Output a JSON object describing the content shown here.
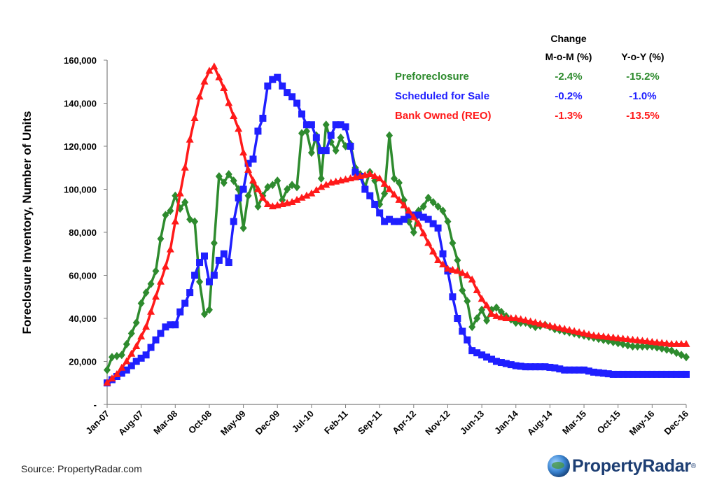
{
  "source": "Source: PropertyRadar.com",
  "brand": {
    "name": "PropertyRadar",
    "tm": "®"
  },
  "legend": {
    "header_change": "Change",
    "header_mom": "M-o-M (%)",
    "header_yoy": "Y-o-Y (%)",
    "rows": [
      {
        "label": "Preforeclosure",
        "mom": "-2.4%",
        "yoy": "-15.2%",
        "color": "#2e8b2e"
      },
      {
        "label": "Scheduled for Sale",
        "mom": "-0.2%",
        "yoy": "-1.0%",
        "color": "#1f1fff"
      },
      {
        "label": "Bank Owned (REO)",
        "mom": "-1.3%",
        "yoy": "-13.5%",
        "color": "#ff1a1a"
      }
    ]
  },
  "chart_data": {
    "type": "line",
    "ylabel": "Foreclosure Inventory, Number of Units",
    "xlabel": "",
    "ylim": [
      0,
      160000
    ],
    "y_ticks": [
      "-",
      "20,000",
      "40,000",
      "60,000",
      "80,000",
      "100,000",
      "120,000",
      "140,000",
      "160,000"
    ],
    "x_tick_labels": [
      "Jan-07",
      "Aug-07",
      "Mar-08",
      "Oct-08",
      "May-09",
      "Dec-09",
      "Jul-10",
      "Feb-11",
      "Sep-11",
      "Apr-12",
      "Nov-12",
      "Jun-13",
      "Jan-14",
      "Aug-14",
      "Mar-15",
      "Oct-15",
      "May-16",
      "Dec-16"
    ],
    "x_start": "Jan-07",
    "x_end": "Dec-16",
    "period": "monthly",
    "grid": false,
    "legend_position": "top-right",
    "series": [
      {
        "name": "Preforeclosure",
        "color": "#2e8b2e",
        "marker": "diamond",
        "anchors": [
          [
            0,
            16000
          ],
          [
            1,
            22000
          ],
          [
            3,
            23000
          ],
          [
            4,
            28000
          ],
          [
            6,
            38000
          ],
          [
            7,
            47000
          ],
          [
            8,
            52000
          ],
          [
            9,
            56000
          ],
          [
            10,
            62000
          ],
          [
            11,
            77000
          ],
          [
            12,
            88000
          ],
          [
            13,
            90000
          ],
          [
            14,
            97000
          ],
          [
            15,
            91000
          ],
          [
            16,
            94000
          ],
          [
            17,
            86000
          ],
          [
            18,
            85000
          ],
          [
            19,
            57000
          ],
          [
            20,
            42000
          ],
          [
            21,
            44000
          ],
          [
            22,
            75000
          ],
          [
            23,
            106000
          ],
          [
            24,
            103000
          ],
          [
            25,
            107000
          ],
          [
            26,
            104000
          ],
          [
            27,
            100000
          ],
          [
            28,
            82000
          ],
          [
            29,
            97000
          ],
          [
            30,
            103000
          ],
          [
            31,
            92000
          ],
          [
            32,
            97000
          ],
          [
            33,
            101000
          ],
          [
            34,
            102000
          ],
          [
            35,
            104000
          ],
          [
            36,
            95000
          ],
          [
            37,
            100000
          ],
          [
            38,
            102000
          ],
          [
            39,
            101000
          ],
          [
            40,
            126000
          ],
          [
            41,
            127000
          ],
          [
            42,
            117000
          ],
          [
            43,
            125000
          ],
          [
            44,
            105000
          ],
          [
            45,
            130000
          ],
          [
            46,
            122000
          ],
          [
            47,
            118000
          ],
          [
            48,
            124000
          ],
          [
            49,
            120000
          ],
          [
            50,
            121000
          ],
          [
            51,
            110000
          ],
          [
            52,
            107000
          ],
          [
            53,
            101000
          ],
          [
            54,
            108000
          ],
          [
            55,
            104000
          ],
          [
            56,
            93000
          ],
          [
            57,
            98000
          ],
          [
            58,
            125000
          ],
          [
            59,
            105000
          ],
          [
            60,
            103000
          ],
          [
            61,
            95000
          ],
          [
            62,
            85000
          ],
          [
            63,
            80000
          ],
          [
            64,
            90000
          ],
          [
            65,
            92000
          ],
          [
            66,
            96000
          ],
          [
            67,
            94000
          ],
          [
            68,
            92000
          ],
          [
            69,
            90000
          ],
          [
            70,
            85000
          ],
          [
            71,
            75000
          ],
          [
            72,
            67000
          ],
          [
            73,
            53000
          ],
          [
            74,
            48000
          ],
          [
            75,
            36000
          ],
          [
            76,
            40000
          ],
          [
            77,
            44000
          ],
          [
            78,
            39000
          ],
          [
            79,
            44000
          ],
          [
            80,
            45000
          ],
          [
            81,
            43000
          ],
          [
            82,
            41000
          ],
          [
            84,
            38000
          ],
          [
            86,
            38000
          ],
          [
            88,
            36000
          ],
          [
            90,
            37000
          ],
          [
            92,
            35000
          ],
          [
            94,
            34000
          ],
          [
            96,
            33000
          ],
          [
            98,
            32000
          ],
          [
            100,
            31000
          ],
          [
            102,
            30000
          ],
          [
            104,
            29000
          ],
          [
            106,
            28000
          ],
          [
            108,
            27000
          ],
          [
            110,
            27000
          ],
          [
            112,
            27000
          ],
          [
            114,
            26000
          ],
          [
            116,
            25000
          ],
          [
            117,
            24000
          ],
          [
            118,
            23000
          ],
          [
            119,
            22000
          ]
        ]
      },
      {
        "name": "Scheduled for Sale",
        "color": "#1f1fff",
        "marker": "square",
        "anchors": [
          [
            0,
            10000
          ],
          [
            2,
            13000
          ],
          [
            4,
            16000
          ],
          [
            6,
            20000
          ],
          [
            8,
            23000
          ],
          [
            10,
            30000
          ],
          [
            12,
            36000
          ],
          [
            13,
            37000
          ],
          [
            14,
            37000
          ],
          [
            15,
            43000
          ],
          [
            16,
            47000
          ],
          [
            17,
            52000
          ],
          [
            18,
            60000
          ],
          [
            19,
            66000
          ],
          [
            20,
            69000
          ],
          [
            21,
            57000
          ],
          [
            22,
            60000
          ],
          [
            23,
            67000
          ],
          [
            24,
            70000
          ],
          [
            25,
            66000
          ],
          [
            26,
            85000
          ],
          [
            27,
            96000
          ],
          [
            28,
            100000
          ],
          [
            29,
            112000
          ],
          [
            30,
            114000
          ],
          [
            31,
            127000
          ],
          [
            32,
            133000
          ],
          [
            33,
            148000
          ],
          [
            34,
            151000
          ],
          [
            35,
            152000
          ],
          [
            36,
            148000
          ],
          [
            37,
            145000
          ],
          [
            38,
            143000
          ],
          [
            39,
            140000
          ],
          [
            40,
            135000
          ],
          [
            41,
            130000
          ],
          [
            42,
            130000
          ],
          [
            43,
            124000
          ],
          [
            44,
            118000
          ],
          [
            45,
            118000
          ],
          [
            46,
            125000
          ],
          [
            47,
            130000
          ],
          [
            48,
            130000
          ],
          [
            49,
            129000
          ],
          [
            50,
            120000
          ],
          [
            51,
            108000
          ],
          [
            52,
            106000
          ],
          [
            53,
            100000
          ],
          [
            54,
            97000
          ],
          [
            55,
            93000
          ],
          [
            56,
            89000
          ],
          [
            57,
            85000
          ],
          [
            58,
            86000
          ],
          [
            59,
            85000
          ],
          [
            60,
            85000
          ],
          [
            61,
            86000
          ],
          [
            62,
            88000
          ],
          [
            63,
            88000
          ],
          [
            64,
            88000
          ],
          [
            65,
            87000
          ],
          [
            66,
            86000
          ],
          [
            67,
            84000
          ],
          [
            68,
            82000
          ],
          [
            69,
            70000
          ],
          [
            70,
            62000
          ],
          [
            71,
            50000
          ],
          [
            72,
            40000
          ],
          [
            73,
            34000
          ],
          [
            74,
            30000
          ],
          [
            75,
            25000
          ],
          [
            76,
            24000
          ],
          [
            77,
            23000
          ],
          [
            78,
            22000
          ],
          [
            80,
            20000
          ],
          [
            82,
            19000
          ],
          [
            84,
            18000
          ],
          [
            86,
            17500
          ],
          [
            88,
            17500
          ],
          [
            90,
            17500
          ],
          [
            92,
            17000
          ],
          [
            94,
            16000
          ],
          [
            96,
            16000
          ],
          [
            98,
            16000
          ],
          [
            100,
            15000
          ],
          [
            104,
            14000
          ],
          [
            108,
            14000
          ],
          [
            112,
            14000
          ],
          [
            116,
            14000
          ],
          [
            119,
            14000
          ]
        ]
      },
      {
        "name": "Bank Owned (REO)",
        "color": "#ff1a1a",
        "marker": "triangle",
        "anchors": [
          [
            0,
            10000
          ],
          [
            2,
            14000
          ],
          [
            4,
            20000
          ],
          [
            6,
            27000
          ],
          [
            8,
            36000
          ],
          [
            10,
            50000
          ],
          [
            12,
            64000
          ],
          [
            13,
            72000
          ],
          [
            14,
            85000
          ],
          [
            15,
            98000
          ],
          [
            16,
            110000
          ],
          [
            17,
            123000
          ],
          [
            18,
            133000
          ],
          [
            19,
            143000
          ],
          [
            20,
            150000
          ],
          [
            21,
            155000
          ],
          [
            22,
            157000
          ],
          [
            23,
            152000
          ],
          [
            24,
            147000
          ],
          [
            25,
            140000
          ],
          [
            26,
            134000
          ],
          [
            27,
            128000
          ],
          [
            28,
            117000
          ],
          [
            29,
            109000
          ],
          [
            30,
            104000
          ],
          [
            31,
            100000
          ],
          [
            32,
            96000
          ],
          [
            33,
            93000
          ],
          [
            34,
            92000
          ],
          [
            36,
            93000
          ],
          [
            38,
            94000
          ],
          [
            40,
            96000
          ],
          [
            42,
            98000
          ],
          [
            44,
            101000
          ],
          [
            46,
            103000
          ],
          [
            48,
            104000
          ],
          [
            50,
            105000
          ],
          [
            52,
            106000
          ],
          [
            54,
            107000
          ],
          [
            56,
            105000
          ],
          [
            58,
            100000
          ],
          [
            60,
            95000
          ],
          [
            62,
            90000
          ],
          [
            64,
            84000
          ],
          [
            66,
            75000
          ],
          [
            68,
            67000
          ],
          [
            70,
            63000
          ],
          [
            72,
            62000
          ],
          [
            74,
            60000
          ],
          [
            75,
            58000
          ],
          [
            76,
            53000
          ],
          [
            77,
            49000
          ],
          [
            78,
            46000
          ],
          [
            79,
            42000
          ],
          [
            80,
            41000
          ],
          [
            82,
            40000
          ],
          [
            84,
            40000
          ],
          [
            86,
            39000
          ],
          [
            88,
            38000
          ],
          [
            90,
            37000
          ],
          [
            92,
            36000
          ],
          [
            94,
            35000
          ],
          [
            96,
            34000
          ],
          [
            98,
            33000
          ],
          [
            100,
            32000
          ],
          [
            102,
            31500
          ],
          [
            104,
            31000
          ],
          [
            106,
            30500
          ],
          [
            108,
            30000
          ],
          [
            110,
            29500
          ],
          [
            112,
            29000
          ],
          [
            114,
            28500
          ],
          [
            116,
            28000
          ],
          [
            118,
            28000
          ],
          [
            119,
            28000
          ]
        ]
      }
    ]
  }
}
